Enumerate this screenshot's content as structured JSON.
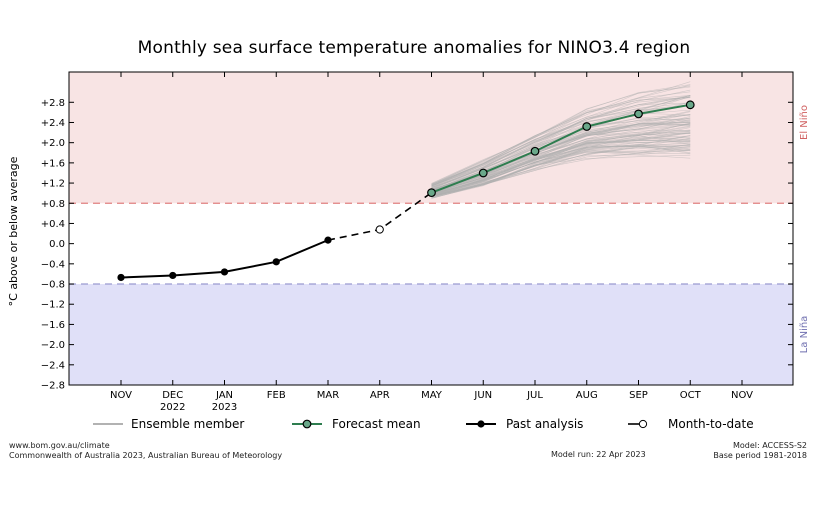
{
  "chart_data": {
    "type": "line",
    "title": "Monthly sea surface temperature anomalies for NINO3.4 region",
    "ylabel": "°C above or below average",
    "ylim": [
      -2.8,
      3.4
    ],
    "yticks": [
      "+2.8",
      "+2.4",
      "+2.0",
      "+1.6",
      "+1.2",
      "+0.8",
      "+0.4",
      "0.0",
      "−0.4",
      "−0.8",
      "−1.2",
      "−1.6",
      "−2.0",
      "−2.4",
      "−2.8"
    ],
    "ytick_values": [
      2.8,
      2.4,
      2.0,
      1.6,
      1.2,
      0.8,
      0.4,
      0.0,
      -0.4,
      -0.8,
      -1.2,
      -1.6,
      -2.0,
      -2.4,
      -2.8
    ],
    "categories": [
      "NOV",
      "DEC",
      "JAN",
      "FEB",
      "MAR",
      "APR",
      "MAY",
      "JUN",
      "JUL",
      "AUG",
      "SEP",
      "OCT",
      "NOV"
    ],
    "category_years": [
      "",
      "2022",
      "2023",
      "",
      "",
      "",
      "",
      "",
      "",
      "",
      "",
      "",
      ""
    ],
    "thresholds": {
      "el_nino": 0.8,
      "la_nina": -0.8,
      "el_nino_label": "El Niño",
      "la_nina_label": "La Niña",
      "el_nino_color": "#f8e4e4",
      "la_nina_color": "#e0e0f8",
      "el_nino_line": "#e08080",
      "la_nina_line": "#9a9ad0"
    },
    "series": [
      {
        "name": "Past analysis",
        "x": [
          "NOV",
          "DEC",
          "JAN",
          "FEB",
          "MAR"
        ],
        "values": [
          -0.67,
          -0.63,
          -0.56,
          -0.36,
          0.07
        ],
        "color": "#000000"
      },
      {
        "name": "Month-to-date",
        "x": [
          "APR"
        ],
        "values": [
          0.28
        ],
        "color": "#000000"
      },
      {
        "name": "Forecast mean",
        "x": [
          "MAY",
          "JUN",
          "JUL",
          "AUG",
          "SEP",
          "OCT"
        ],
        "values": [
          1.01,
          1.4,
          1.83,
          2.32,
          2.57,
          2.75
        ],
        "color": "#2e7d4f"
      },
      {
        "name": "Ensemble member",
        "x": [
          "MAY",
          "JUN",
          "JUL",
          "AUG",
          "SEP",
          "OCT"
        ],
        "range_low": [
          0.85,
          1.05,
          1.35,
          1.55,
          1.55,
          1.5
        ],
        "range_high": [
          1.25,
          1.75,
          2.3,
          2.85,
          3.2,
          3.45
        ],
        "color": "#b0b0b0"
      }
    ],
    "legend": {
      "position": "bottom",
      "items": [
        "Ensemble member",
        "Forecast mean",
        "Past analysis",
        "Month-to-date"
      ]
    },
    "grid": false
  },
  "footer": {
    "url": "www.bom.gov.au/climate",
    "copyright": "Commonwealth of Australia 2023, Australian Bureau of Meteorology",
    "model_run": "Model run: 22 Apr 2023",
    "model": "Model: ACCESS-S2",
    "base_period": "Base period 1981-2018"
  }
}
